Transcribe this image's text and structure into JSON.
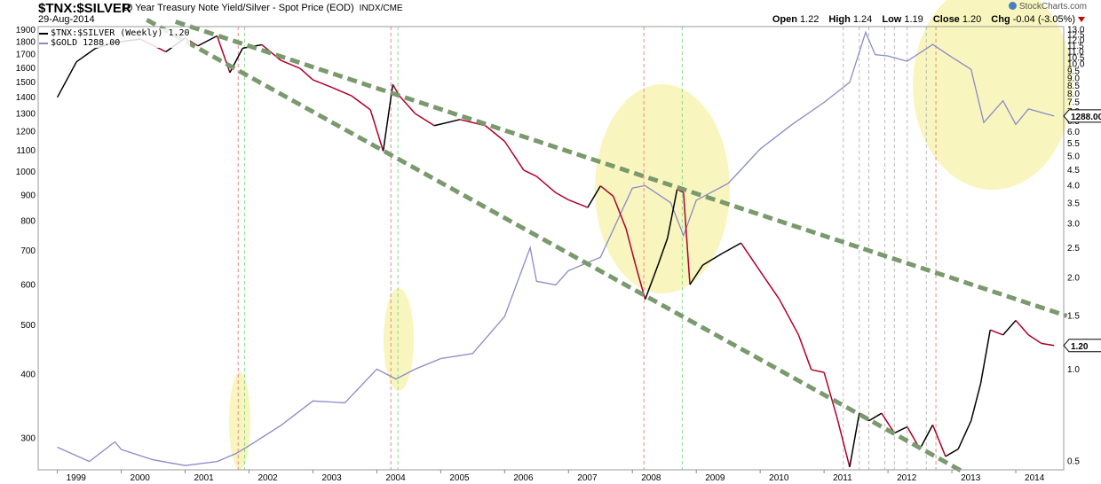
{
  "header": {
    "symbol": "$TNX:$SILVER",
    "description": "10 Year Treasury Note Yield/Silver - Spot Price (EOD)",
    "source": "INDX/CME",
    "date": "29-Aug-2014",
    "open_label": "Open",
    "open": "1.22",
    "high_label": "High",
    "high": "1.24",
    "low_label": "Low",
    "low": "1.19",
    "close_label": "Close",
    "close": "1.20",
    "chg_label": "Chg",
    "chg": "-0.04 (-3.05%)",
    "brand": "StockCharts.com"
  },
  "legend": [
    {
      "label": "$TNX:$SILVER (Weekly) 1.20",
      "color": "#000000"
    },
    {
      "label": "$GOLD 1288.00",
      "color": "#8a8ac8"
    }
  ],
  "colors": {
    "ratio_up": "#000000",
    "ratio_down": "#b0002a",
    "gold": "#8a8ac8",
    "trendline": "#7a9a6e",
    "highlight": "#f7f5b3",
    "marker_red": "#ee8888",
    "marker_green": "#88dd88",
    "marker_gray": "#bbbbbb"
  },
  "chart_data": {
    "type": "line",
    "title": "$TNX:$SILVER",
    "x_ticks": [
      "1999",
      "2000",
      "2001",
      "2002",
      "2003",
      "2004",
      "2005",
      "2006",
      "2007",
      "2008",
      "2009",
      "2010",
      "2011",
      "2012",
      "2013",
      "2014"
    ],
    "left_axis": {
      "scale": "log",
      "ticks": [
        300,
        400,
        500,
        600,
        700,
        800,
        900,
        1000,
        1100,
        1200,
        1300,
        1400,
        1500,
        1600,
        1700,
        1800,
        1900
      ],
      "ylim": [
        260,
        1930
      ]
    },
    "right_axis": {
      "scale": "log",
      "ticks": [
        0.5,
        1.0,
        1.5,
        2.0,
        2.5,
        3.0,
        3.5,
        4.0,
        4.5,
        5.0,
        5.5,
        6.0,
        6.5,
        7.0,
        7.5,
        8.0,
        8.5,
        9.0,
        9.5,
        10.0,
        10.5,
        11.0,
        11.5,
        12.0,
        12.5,
        13.0
      ],
      "ylim": [
        0.47,
        13.3
      ]
    },
    "last_labels": {
      "gold": "1288.00",
      "ratio": "1.20"
    },
    "series": [
      {
        "name": "$TNX:$SILVER (Weekly)",
        "axis": "right",
        "x": [
          1999.0,
          1999.3,
          1999.6,
          1999.9,
          2000.3,
          2000.7,
          2001.0,
          2001.2,
          2001.5,
          2001.7,
          2001.9,
          2002.2,
          2002.5,
          2002.8,
          2003.0,
          2003.3,
          2003.6,
          2003.9,
          2004.1,
          2004.25,
          2004.35,
          2004.6,
          2004.9,
          2005.3,
          2005.7,
          2006.0,
          2006.3,
          2006.5,
          2006.8,
          2007.0,
          2007.3,
          2007.5,
          2007.7,
          2007.9,
          2008.05,
          2008.2,
          2008.4,
          2008.55,
          2008.7,
          2008.8,
          2008.9,
          2009.1,
          2009.4,
          2009.7,
          2010.0,
          2010.3,
          2010.6,
          2010.8,
          2011.0,
          2011.2,
          2011.4,
          2011.55,
          2011.7,
          2011.9,
          2012.1,
          2012.3,
          2012.5,
          2012.7,
          2012.9,
          2013.1,
          2013.3,
          2013.45,
          2013.6,
          2013.8,
          2014.0,
          2014.2,
          2014.4,
          2014.6
        ],
        "values": [
          7.8,
          10.2,
          11.3,
          11.8,
          12.1,
          11.0,
          12.2,
          11.5,
          12.4,
          9.4,
          11.3,
          11.6,
          10.3,
          9.7,
          8.9,
          8.4,
          7.9,
          7.1,
          5.2,
          8.6,
          7.9,
          6.9,
          6.3,
          6.6,
          6.3,
          5.6,
          4.5,
          4.3,
          3.8,
          3.6,
          3.4,
          4.0,
          3.7,
          2.9,
          2.2,
          1.7,
          2.2,
          2.7,
          3.9,
          3.8,
          1.9,
          2.2,
          2.4,
          2.6,
          2.1,
          1.7,
          1.3,
          1.0,
          0.98,
          0.7,
          0.48,
          0.72,
          0.68,
          0.72,
          0.62,
          0.65,
          0.55,
          0.66,
          0.52,
          0.55,
          0.68,
          0.9,
          1.35,
          1.3,
          1.45,
          1.3,
          1.22,
          1.2
        ]
      },
      {
        "name": "$GOLD",
        "axis": "left",
        "x": [
          1999.0,
          1999.5,
          1999.9,
          2000.0,
          2000.5,
          2001.0,
          2001.5,
          2001.8,
          2002.0,
          2002.5,
          2003.0,
          2003.5,
          2004.0,
          2004.3,
          2004.6,
          2005.0,
          2005.5,
          2006.0,
          2006.4,
          2006.5,
          2006.8,
          2007.0,
          2007.5,
          2008.0,
          2008.2,
          2008.6,
          2008.8,
          2009.0,
          2009.5,
          2010.0,
          2010.5,
          2011.0,
          2011.4,
          2011.65,
          2011.8,
          2012.0,
          2012.3,
          2012.7,
          2013.0,
          2013.3,
          2013.5,
          2013.8,
          2014.0,
          2014.2,
          2014.6
        ],
        "values": [
          288,
          270,
          295,
          285,
          272,
          265,
          270,
          280,
          290,
          318,
          355,
          352,
          410,
          392,
          410,
          430,
          440,
          520,
          710,
          610,
          600,
          640,
          680,
          930,
          940,
          870,
          750,
          880,
          950,
          1110,
          1240,
          1370,
          1500,
          1880,
          1700,
          1690,
          1650,
          1780,
          1680,
          1590,
          1250,
          1380,
          1240,
          1330,
          1288
        ]
      }
    ]
  }
}
